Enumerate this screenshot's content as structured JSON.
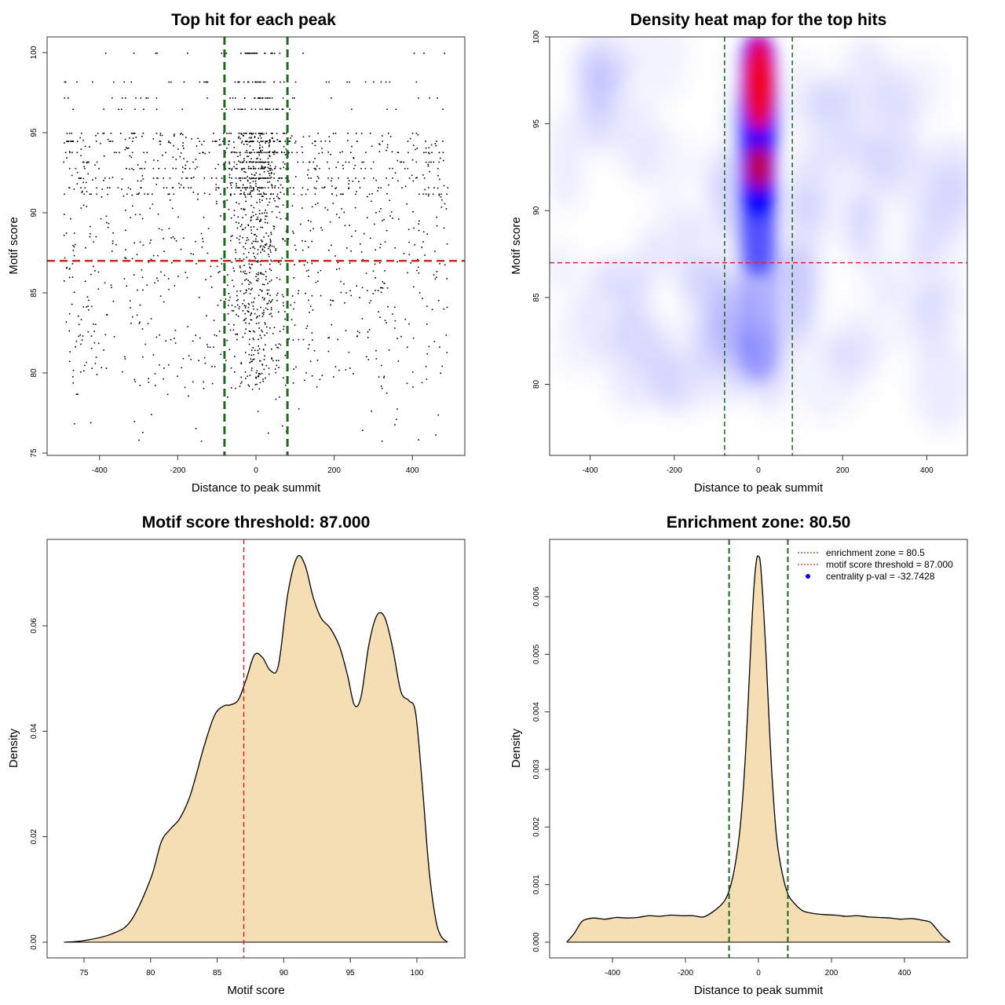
{
  "chart_data": [
    {
      "type": "scatter",
      "title": "Top hit for each peak",
      "xlabel": "Distance to peak summit",
      "ylabel": "Motif score",
      "xlim": [
        -500,
        500
      ],
      "ylim": [
        75,
        100
      ],
      "xticks": [
        "-400",
        "-200",
        "0",
        "200",
        "400"
      ],
      "xtick_values": [
        -400,
        -200,
        0,
        200,
        400
      ],
      "yticks": [
        "75",
        "80",
        "85",
        "90",
        "95",
        "100"
      ],
      "ytick_values": [
        75,
        80,
        85,
        90,
        95,
        100
      ],
      "vlines": [
        -80.5,
        80.5
      ],
      "hline": 87,
      "point_color": "#000000",
      "line_colors": {
        "enrichment": "#1a6b1a",
        "threshold": "#d62728"
      }
    },
    {
      "type": "heatmap",
      "title": "Density heat map for the top hits",
      "xlabel": "Distance to peak summit",
      "ylabel": "Motif score",
      "xlim": [
        -500,
        500
      ],
      "ylim": [
        76,
        100
      ],
      "xticks": [
        "-400",
        "-200",
        "0",
        "200",
        "400"
      ],
      "xtick_values": [
        -400,
        -200,
        0,
        200,
        400
      ],
      "yticks": [
        "80",
        "85",
        "90",
        "95",
        "100"
      ],
      "ytick_values": [
        80,
        85,
        90,
        95,
        100
      ],
      "vlines": [
        -80.5,
        80.5
      ],
      "hline": 87,
      "colors": {
        "low": "#ffffff",
        "mid": "#0000ff",
        "high": "#ff0000"
      }
    },
    {
      "type": "area",
      "title": "Motif score threshold: 87.000",
      "xlabel": "Motif score",
      "ylabel": "Density",
      "xlim": [
        72.5,
        103
      ],
      "ylim": [
        0,
        0.075
      ],
      "xticks": [
        "75",
        "80",
        "85",
        "90",
        "95",
        "100"
      ],
      "xtick_values": [
        75,
        80,
        85,
        90,
        95,
        100
      ],
      "yticks": [
        "0.00",
        "0.02",
        "0.04",
        "0.06"
      ],
      "ytick_values": [
        0,
        0.02,
        0.04,
        0.06
      ],
      "vline": 87,
      "fill_color": "#f5deb3",
      "x": [
        73.5,
        75,
        77,
        78.5,
        80,
        80.8,
        81.5,
        82.2,
        83,
        84,
        84.8,
        85.5,
        86,
        86.6,
        87.2,
        87.8,
        88.4,
        89,
        89.6,
        90.3,
        91,
        91.6,
        92.2,
        92.8,
        93.5,
        94.2,
        94.8,
        95.3,
        95.8,
        96.4,
        97,
        97.6,
        98.2,
        98.8,
        99.4,
        99.9,
        100.4,
        100.9,
        101.4,
        101.8,
        102.3
      ],
      "y": [
        0.0,
        0.0003,
        0.0015,
        0.004,
        0.012,
        0.019,
        0.0215,
        0.0235,
        0.028,
        0.037,
        0.043,
        0.0448,
        0.045,
        0.046,
        0.05,
        0.0545,
        0.054,
        0.0515,
        0.0525,
        0.066,
        0.073,
        0.0715,
        0.0655,
        0.0615,
        0.0595,
        0.056,
        0.0505,
        0.045,
        0.0465,
        0.0565,
        0.062,
        0.0615,
        0.0555,
        0.0475,
        0.0458,
        0.0435,
        0.03,
        0.014,
        0.0045,
        0.0012,
        0.0
      ]
    },
    {
      "type": "area",
      "title": "Enrichment zone: 80.50",
      "xlabel": "Distance to peak summit",
      "ylabel": "Density",
      "xlim": [
        -545,
        545
      ],
      "ylim": [
        -5e-05,
        0.00695
      ],
      "xticks": [
        "-400",
        "-200",
        "0",
        "200",
        "400"
      ],
      "xtick_values": [
        -400,
        -200,
        0,
        200,
        400
      ],
      "yticks": [
        "0.000",
        "0.001",
        "0.002",
        "0.003",
        "0.004",
        "0.005",
        "0.006"
      ],
      "ytick_values": [
        0,
        0.001,
        0.002,
        0.003,
        0.004,
        0.005,
        0.006
      ],
      "vlines": [
        -80.5,
        80.5
      ],
      "fill_color": "#f5deb3",
      "x": [
        -525,
        -505,
        -485,
        -470,
        -450,
        -420,
        -390,
        -360,
        -330,
        -300,
        -270,
        -240,
        -210,
        -180,
        -150,
        -120,
        -95,
        -80,
        -65,
        -50,
        -38,
        -28,
        -20,
        -12,
        -5,
        0,
        5,
        12,
        20,
        28,
        38,
        50,
        65,
        80,
        95,
        120,
        150,
        180,
        210,
        240,
        270,
        300,
        330,
        360,
        390,
        420,
        450,
        470,
        485,
        505,
        525
      ],
      "y": [
        0.0,
        0.00015,
        0.00035,
        0.0004,
        0.00042,
        0.0004,
        0.00043,
        0.00042,
        0.00043,
        0.00046,
        0.00045,
        0.00047,
        0.00046,
        0.00046,
        0.00044,
        0.00055,
        0.0007,
        0.0009,
        0.0013,
        0.002,
        0.003,
        0.0042,
        0.0053,
        0.0062,
        0.00665,
        0.0067,
        0.0066,
        0.006,
        0.0051,
        0.004,
        0.0028,
        0.0018,
        0.0012,
        0.00085,
        0.0007,
        0.00055,
        0.0005,
        0.00048,
        0.00047,
        0.00045,
        0.00046,
        0.00044,
        0.00043,
        0.00042,
        0.0004,
        0.00041,
        0.00038,
        0.00035,
        0.00025,
        0.0001,
        0.0
      ],
      "legend": [
        {
          "label": "enrichment zone = 80.5",
          "color": "#1a6b1a",
          "style": "dotted-line"
        },
        {
          "label": "motif score threshold = 87.000",
          "color": "#d62728",
          "style": "dotted-line"
        },
        {
          "label": "centrality p-val = -32.7428",
          "color": "#0000ff",
          "style": "dot"
        }
      ]
    }
  ]
}
